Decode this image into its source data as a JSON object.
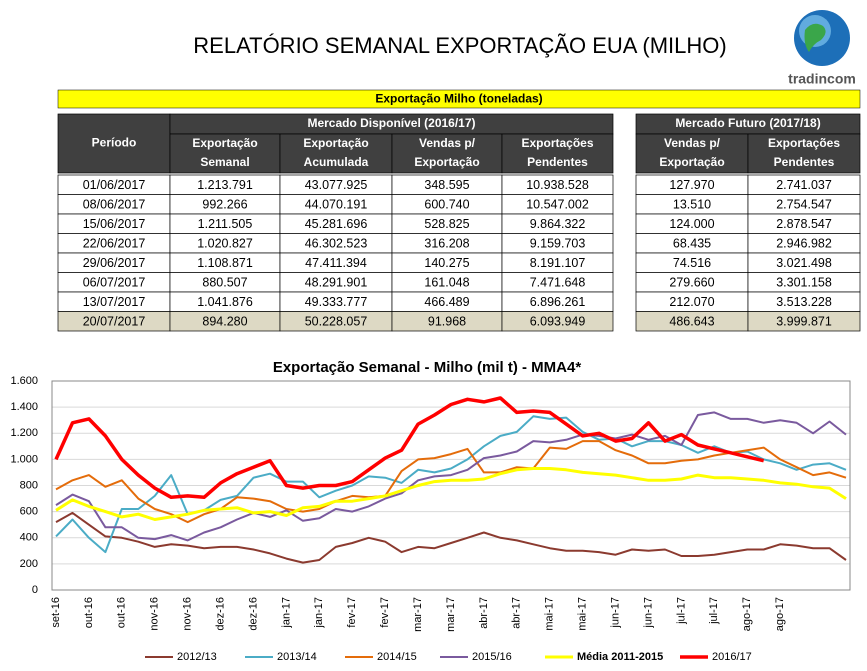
{
  "header": {
    "title": "RELATÓRIO SEMANAL EXPORTAÇÃO EUA (MILHO)",
    "logo": "tradincom"
  },
  "table": {
    "caption": "Exportação Milho (toneladas)",
    "group_left": "Mercado Disponível (2016/17)",
    "group_right": "Mercado Futuro (2017/18)",
    "period": "Período",
    "columns": [
      [
        "Exportação",
        "Semanal"
      ],
      [
        "Exportação",
        "Acumulada"
      ],
      [
        "Vendas p/",
        "Exportação"
      ],
      [
        "Exportações",
        "Pendentes"
      ],
      [
        "Vendas p/",
        "Exportação"
      ],
      [
        "Exportações",
        "Pendentes"
      ]
    ],
    "rows": [
      [
        "01/06/2017",
        "1.213.791",
        "43.077.925",
        "348.595",
        "10.938.528",
        "127.970",
        "2.741.037"
      ],
      [
        "08/06/2017",
        "992.266",
        "44.070.191",
        "600.740",
        "10.547.002",
        "13.510",
        "2.754.547"
      ],
      [
        "15/06/2017",
        "1.211.505",
        "45.281.696",
        "528.825",
        "9.864.322",
        "124.000",
        "2.878.547"
      ],
      [
        "22/06/2017",
        "1.020.827",
        "46.302.523",
        "316.208",
        "9.159.703",
        "68.435",
        "2.946.982"
      ],
      [
        "29/06/2017",
        "1.108.871",
        "47.411.394",
        "140.275",
        "8.191.107",
        "74.516",
        "3.021.498"
      ],
      [
        "06/07/2017",
        "880.507",
        "48.291.901",
        "161.048",
        "7.471.648",
        "279.660",
        "3.301.158"
      ],
      [
        "13/07/2017",
        "1.041.876",
        "49.333.777",
        "466.489",
        "6.896.261",
        "212.070",
        "3.513.228"
      ],
      [
        "20/07/2017",
        "894.280",
        "50.228.057",
        "91.968",
        "6.093.949",
        "486.643",
        "3.999.871"
      ]
    ]
  },
  "chart_data": {
    "type": "line",
    "title": "Exportação Semanal - Milho (mil t) - MMA4*",
    "categories": [
      "set-16",
      null,
      "out-16",
      null,
      "out-16",
      null,
      "nov-16",
      null,
      "nov-16",
      null,
      "dez-16",
      null,
      "dez-16",
      null,
      "jan-17",
      null,
      "jan-17",
      null,
      "fev-17",
      null,
      "fev-17",
      null,
      "mar-17",
      null,
      "mar-17",
      null,
      "abr-17",
      null,
      "abr-17",
      null,
      "mai-17",
      null,
      "mai-17",
      null,
      "jun-17",
      null,
      "jun-17",
      null,
      "jul-17",
      null,
      "jul-17",
      null,
      "ago-17",
      null,
      "ago-17",
      null,
      null,
      null,
      null
    ],
    "ylim": [
      0,
      1600
    ],
    "yticks": [
      0,
      200,
      400,
      600,
      800,
      {
        "value": 1000,
        "label": "1.000"
      },
      {
        "value": 1200,
        "label": "1.200"
      },
      {
        "value": 1400,
        "label": "1.400"
      },
      {
        "value": 1600,
        "label": "1.600"
      }
    ],
    "grid": true,
    "series": [
      {
        "name": "2012/13",
        "color": "#8b3a2f",
        "width": 2,
        "values": [
          520,
          590,
          500,
          410,
          400,
          370,
          330,
          350,
          340,
          320,
          330,
          330,
          310,
          280,
          240,
          210,
          230,
          330,
          360,
          400,
          370,
          290,
          330,
          320,
          360,
          400,
          440,
          400,
          380,
          350,
          320,
          300,
          300,
          290,
          270,
          310,
          300,
          310,
          260,
          260,
          270,
          290,
          310,
          310,
          350,
          340,
          320,
          320,
          230
        ]
      },
      {
        "name": "2013/14",
        "color": "#4bacc6",
        "width": 2,
        "values": [
          410,
          540,
          400,
          290,
          620,
          620,
          720,
          880,
          580,
          610,
          690,
          720,
          860,
          890,
          830,
          830,
          710,
          760,
          800,
          870,
          860,
          820,
          920,
          900,
          930,
          1000,
          1100,
          1180,
          1210,
          1330,
          1310,
          1320,
          1210,
          1150,
          1160,
          1100,
          1140,
          1140,
          1110,
          1050,
          1100,
          1050,
          1060,
          1000,
          970,
          920,
          960,
          970,
          920
        ]
      },
      {
        "name": "2014/15",
        "color": "#e46c0a",
        "width": 2,
        "values": [
          770,
          840,
          880,
          790,
          840,
          700,
          620,
          580,
          520,
          580,
          620,
          710,
          700,
          680,
          620,
          600,
          620,
          680,
          720,
          710,
          720,
          910,
          1000,
          1010,
          1040,
          1080,
          900,
          900,
          940,
          930,
          1090,
          1080,
          1140,
          1140,
          1070,
          1030,
          970,
          970,
          990,
          1000,
          1030,
          1050,
          1070,
          1090,
          1000,
          940,
          880,
          900,
          860
        ]
      },
      {
        "name": "2015/16",
        "color": "#7a5a9e",
        "width": 2,
        "values": [
          650,
          730,
          680,
          480,
          480,
          400,
          390,
          420,
          380,
          440,
          480,
          540,
          590,
          560,
          610,
          530,
          550,
          620,
          600,
          640,
          700,
          740,
          840,
          870,
          880,
          920,
          1010,
          1030,
          1060,
          1140,
          1130,
          1150,
          1190,
          1180,
          1160,
          1190,
          1150,
          1180,
          1110,
          1340,
          1360,
          1310,
          1310,
          1280,
          1300,
          1280,
          1200,
          1290,
          1190
        ]
      },
      {
        "name": "Média 2011-2015",
        "color": "#ffff00",
        "width": 3,
        "values": [
          610,
          690,
          640,
          600,
          560,
          580,
          540,
          560,
          580,
          610,
          620,
          630,
          590,
          600,
          570,
          630,
          640,
          680,
          680,
          700,
          720,
          760,
          800,
          830,
          840,
          840,
          850,
          890,
          920,
          930,
          930,
          920,
          900,
          890,
          880,
          860,
          840,
          840,
          850,
          880,
          860,
          860,
          850,
          840,
          820,
          810,
          790,
          780,
          700
        ]
      },
      {
        "name": "2016/17",
        "color": "#ff0000",
        "width": 3.5,
        "values": [
          1000,
          1280,
          1310,
          1180,
          1000,
          880,
          780,
          710,
          720,
          710,
          820,
          890,
          940,
          990,
          800,
          780,
          800,
          800,
          830,
          920,
          1010,
          1070,
          1270,
          1340,
          1420,
          1460,
          1440,
          1470,
          1360,
          1370,
          1360,
          1270,
          1180,
          1200,
          1140,
          1160,
          1280,
          1140,
          1190,
          1110,
          1080,
          1050,
          1020,
          990,
          null,
          null,
          null,
          null,
          null
        ]
      }
    ]
  }
}
